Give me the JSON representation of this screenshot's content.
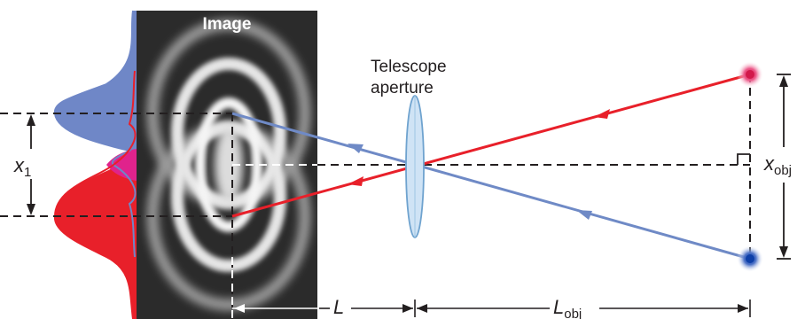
{
  "labels": {
    "image_title": "Image",
    "aperture_line1": "Telescope",
    "aperture_line2": "aperture",
    "x1_main": "x",
    "x1_sub": "1",
    "xobj_main": "x",
    "xobj_sub": "obj",
    "L": "L",
    "Lobj_main": "L",
    "Lobj_sub": "obj"
  },
  "colors": {
    "red_ray": "#e8202a",
    "blue_ray": "#6f8ac6",
    "blue_fill": "#6f87c7",
    "red_fill": "#e8202a",
    "overlap_fill": "#e0238c",
    "image_bg": "#2b2b2b",
    "lens": "#cfe3f5",
    "red_source": "#e8336b",
    "blue_source": "#1f4fb0"
  }
}
